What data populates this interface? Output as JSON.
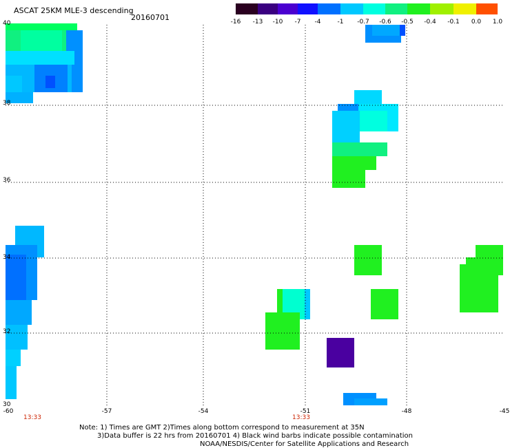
{
  "header": {
    "title": "ASCAT 25KM MLE-3 descending",
    "date": "20160701"
  },
  "colorbar": {
    "labels": [
      "-16",
      "-13",
      "-10",
      "-7",
      "-4",
      "-1",
      "-0.7",
      "-0.6",
      "-0.5",
      "-0.4",
      "-0.1",
      "0.0",
      "1.0"
    ],
    "colors": [
      "#2a0020",
      "#3a0080",
      "#4a00d0",
      "#1010ff",
      "#0070ff",
      "#00c8ff",
      "#00ffe0",
      "#10f080",
      "#20f020",
      "#a0f000",
      "#f0f000",
      "#ff9000",
      "#ff2000"
    ]
  },
  "map": {
    "x_ticks": [
      "-60",
      "-57",
      "-54",
      "-51",
      "-48",
      "-45"
    ],
    "y_ticks": [
      "40",
      "38",
      "36",
      "34",
      "32",
      "30"
    ],
    "time_labels": [
      "13:33",
      "13:33"
    ],
    "time_label_color": "#cc2200",
    "grid": "dotted"
  },
  "notes": {
    "line1": "Note: 1) Times are GMT 2)Times along bottom correspond to measurement at 35N",
    "line2": "3)Data buffer is 22 hrs from 20160701 4) Black wind barbs indicate possible contamination",
    "line3": "NOAA/NESDIS/Center for Satellite Applications and Research"
  }
}
